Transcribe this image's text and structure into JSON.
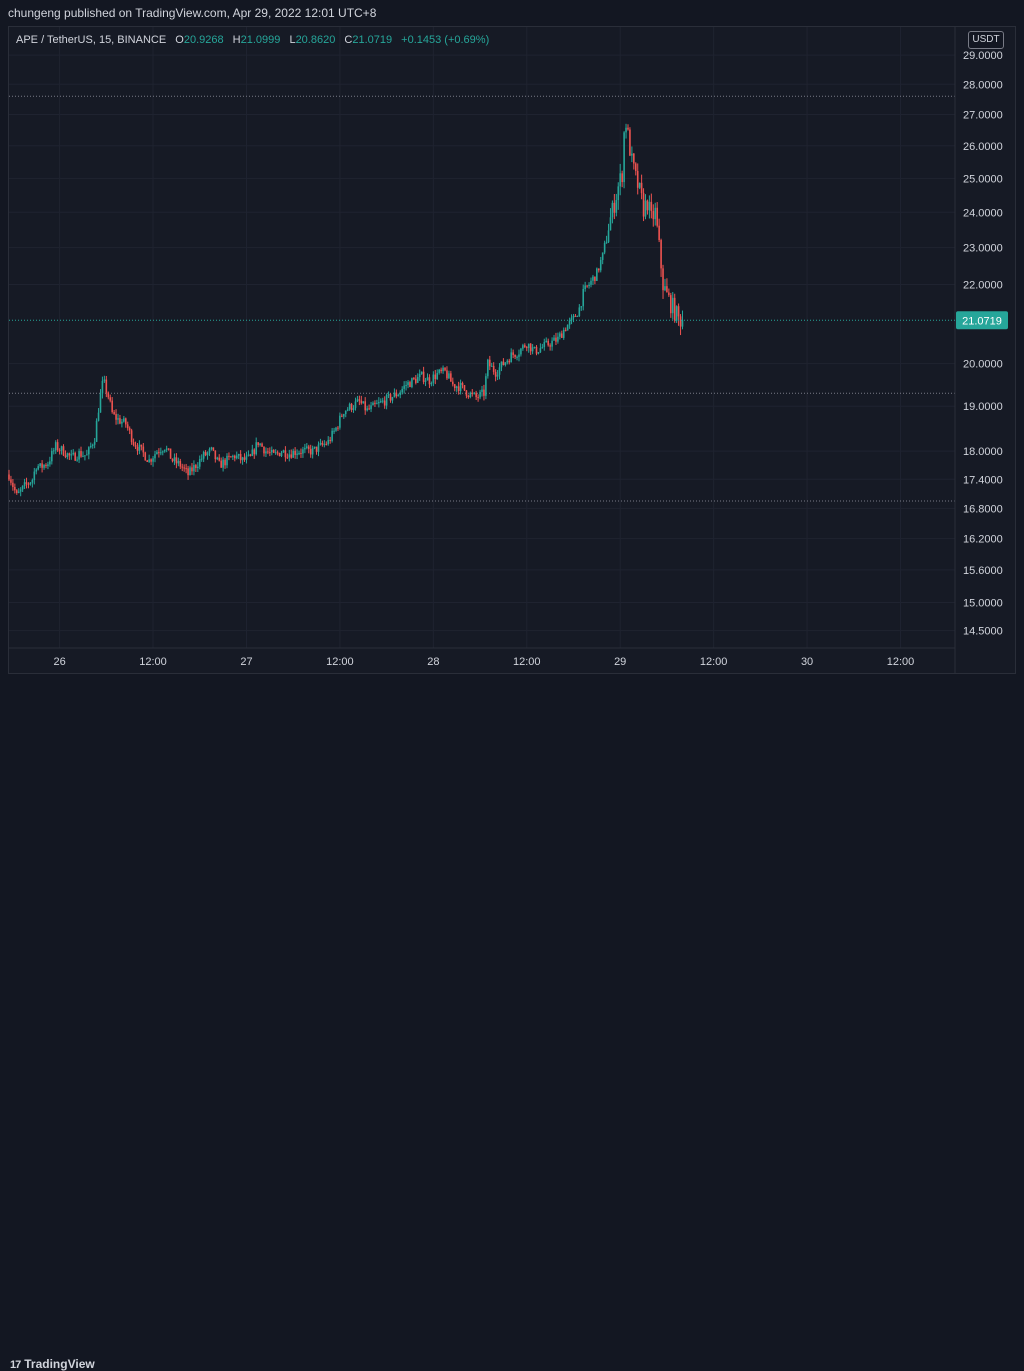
{
  "header": {
    "publish_text": "chungeng published on TradingView.com, Apr 29, 2022 12:01 UTC+8"
  },
  "legend": {
    "symbol": "APE / TetherUS, 15, BINANCE",
    "open_label": "O",
    "open": "20.9268",
    "high_label": "H",
    "high": "21.0999",
    "low_label": "L",
    "low": "20.8620",
    "close_label": "C",
    "close": "21.0719",
    "change": "+0.1453 (+0.69%)"
  },
  "price_axis": {
    "unit_badge": "USDT",
    "current_price_label": "21.0719"
  },
  "branding": {
    "logo_text": "TradingView",
    "logo_icon": "tradingview-logo-icon"
  },
  "colors": {
    "up": "#26a69a",
    "down": "#ef5350",
    "background": "#161a25",
    "grid": "#1f2330"
  },
  "chart_data": {
    "type": "candlestick",
    "symbol": "APE / TetherUS",
    "interval": "15",
    "exchange": "BINANCE",
    "y_scale": "log",
    "y_ticks": [
      "29.0000",
      "28.0000",
      "27.0000",
      "26.0000",
      "25.0000",
      "24.0000",
      "23.0000",
      "22.0000",
      "20.0000",
      "19.0000",
      "18.0000",
      "17.4000",
      "16.8000",
      "16.2000",
      "15.6000",
      "15.0000",
      "14.5000"
    ],
    "x_tick_labels": [
      {
        "t": 16.0,
        "label": "26"
      },
      {
        "t": 28.0,
        "label": "12:00"
      },
      {
        "t": 40.0,
        "label": "27"
      },
      {
        "t": 52.0,
        "label": "12:00"
      },
      {
        "t": 64.0,
        "label": "28"
      },
      {
        "t": 76.0,
        "label": "12:00"
      },
      {
        "t": 88.0,
        "label": "29"
      },
      {
        "t": 100.0,
        "label": "12:00"
      },
      {
        "t": 112.0,
        "label": "30"
      },
      {
        "t": 124.0,
        "label": "12:00"
      }
    ],
    "x_range_hours": [
      9.5,
      131.0
    ],
    "y_range": [
      14.2,
      30.0
    ],
    "horizontal_lines": [
      27.6,
      19.3,
      16.95
    ],
    "current_price": 21.0719,
    "price_path": [
      [
        9.5,
        17.5
      ],
      [
        10.5,
        17.05
      ],
      [
        11.5,
        17.25
      ],
      [
        12.5,
        17.4
      ],
      [
        13.0,
        17.7
      ],
      [
        13.5,
        17.65
      ],
      [
        14.5,
        17.75
      ],
      [
        15.5,
        18.1
      ],
      [
        16.5,
        18.0
      ],
      [
        17.5,
        17.85
      ],
      [
        18.5,
        17.95
      ],
      [
        19.5,
        17.9
      ],
      [
        20.5,
        18.3
      ],
      [
        21.2,
        19.2
      ],
      [
        21.6,
        19.6
      ],
      [
        22.3,
        19.2
      ],
      [
        22.8,
        18.8
      ],
      [
        23.5,
        18.7
      ],
      [
        24.5,
        18.6
      ],
      [
        25.5,
        18.2
      ],
      [
        26.5,
        18.0
      ],
      [
        27.5,
        17.8
      ],
      [
        28.5,
        18.0
      ],
      [
        29.5,
        18.1
      ],
      [
        30.5,
        17.8
      ],
      [
        31.5,
        17.7
      ],
      [
        32.5,
        17.5
      ],
      [
        33.5,
        17.7
      ],
      [
        34.5,
        17.9
      ],
      [
        35.5,
        18.0
      ],
      [
        36.5,
        17.7
      ],
      [
        37.5,
        17.8
      ],
      [
        38.5,
        17.9
      ],
      [
        39.5,
        17.8
      ],
      [
        40.5,
        17.85
      ],
      [
        41.5,
        18.2
      ],
      [
        42.5,
        18.0
      ],
      [
        43.5,
        17.9
      ],
      [
        44.5,
        18.0
      ],
      [
        45.5,
        17.95
      ],
      [
        46.5,
        18.0
      ],
      [
        47.5,
        18.0
      ],
      [
        48.5,
        18.0
      ],
      [
        49.5,
        18.1
      ],
      [
        50.5,
        18.2
      ],
      [
        51.5,
        18.5
      ],
      [
        52.5,
        18.9
      ],
      [
        53.5,
        19.0
      ],
      [
        54.5,
        19.1
      ],
      [
        55.5,
        18.9
      ],
      [
        56.5,
        19.0
      ],
      [
        57.5,
        19.1
      ],
      [
        58.5,
        19.2
      ],
      [
        59.5,
        19.3
      ],
      [
        60.5,
        19.5
      ],
      [
        61.5,
        19.6
      ],
      [
        62.5,
        19.7
      ],
      [
        63.5,
        19.6
      ],
      [
        64.5,
        19.75
      ],
      [
        65.5,
        19.8
      ],
      [
        66.5,
        19.5
      ],
      [
        67.5,
        19.45
      ],
      [
        68.5,
        19.3
      ],
      [
        69.5,
        19.2
      ],
      [
        70.5,
        19.3
      ],
      [
        71.0,
        20.0
      ],
      [
        72.0,
        19.8
      ],
      [
        73.0,
        20.0
      ],
      [
        74.0,
        20.2
      ],
      [
        75.0,
        20.3
      ],
      [
        76.0,
        20.5
      ],
      [
        77.0,
        20.3
      ],
      [
        78.0,
        20.4
      ],
      [
        79.0,
        20.5
      ],
      [
        80.0,
        20.6
      ],
      [
        81.0,
        20.9
      ],
      [
        82.0,
        21.1
      ],
      [
        82.8,
        21.4
      ],
      [
        83.3,
        21.8
      ],
      [
        84.0,
        22.0
      ],
      [
        85.0,
        22.3
      ],
      [
        85.8,
        22.8
      ],
      [
        86.5,
        23.6
      ],
      [
        87.3,
        24.3
      ],
      [
        87.8,
        24.8
      ],
      [
        88.3,
        25.2
      ],
      [
        88.6,
        27.0
      ],
      [
        89.0,
        26.3
      ],
      [
        89.5,
        25.5
      ],
      [
        90.0,
        25.0
      ],
      [
        90.5,
        24.6
      ],
      [
        91.0,
        24.1
      ],
      [
        91.5,
        24.3
      ],
      [
        92.0,
        23.8
      ],
      [
        92.5,
        24.0
      ],
      [
        93.0,
        23.0
      ],
      [
        93.5,
        22.0
      ],
      [
        94.0,
        21.7
      ],
      [
        94.5,
        21.5
      ],
      [
        95.0,
        21.3
      ],
      [
        95.5,
        21.1
      ],
      [
        96.0,
        21.07
      ]
    ]
  }
}
